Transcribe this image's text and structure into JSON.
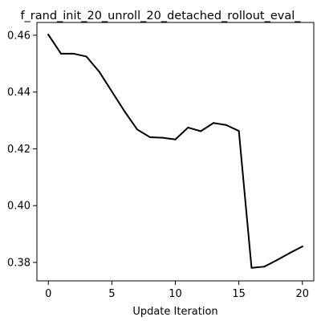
{
  "chart_data": {
    "type": "line",
    "title": "f_rand_init_20_unroll_20_detached_rollout_eval_",
    "xlabel": "Update Iteration",
    "ylabel": "",
    "xlim": [
      -0.9,
      20.9
    ],
    "ylim": [
      0.3735,
      0.4645
    ],
    "xticks": [
      0,
      5,
      10,
      15,
      20
    ],
    "yticks": [
      0.38,
      0.4,
      0.42,
      0.44,
      0.46
    ],
    "ytick_labels": [
      "0.38",
      "0.40",
      "0.42",
      "0.44",
      "0.46"
    ],
    "grid": false,
    "series": [
      {
        "color": "#000000",
        "x": [
          0,
          1,
          2,
          3,
          4,
          5,
          6,
          7,
          8,
          9,
          10,
          11,
          12,
          13,
          14,
          15,
          16,
          17,
          18,
          19,
          20
        ],
        "y": [
          0.4602,
          0.4535,
          0.4535,
          0.4525,
          0.4472,
          0.4402,
          0.4332,
          0.4268,
          0.4241,
          0.4239,
          0.4233,
          0.4275,
          0.4262,
          0.4291,
          0.4284,
          0.4263,
          0.3781,
          0.3785,
          0.3808,
          0.3833,
          0.3856
        ]
      }
    ]
  }
}
